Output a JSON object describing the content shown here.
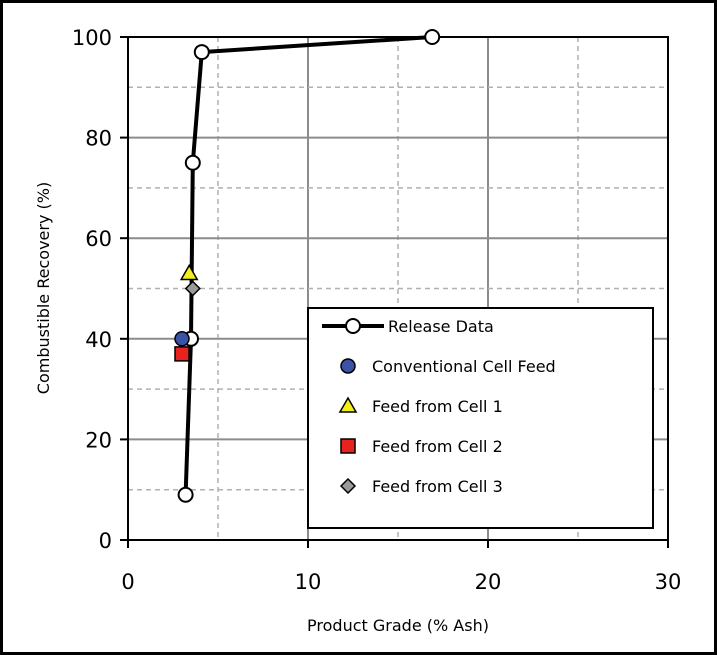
{
  "chart_data": {
    "type": "scatter",
    "title": "",
    "xlabel": "Product Grade (% Ash)",
    "ylabel": "Combustible Recovery (%)",
    "xlim": [
      0,
      30
    ],
    "ylim": [
      0,
      100
    ],
    "x_ticks": [
      0,
      10,
      20,
      30
    ],
    "y_ticks": [
      0,
      20,
      40,
      60,
      80,
      100
    ],
    "x_tick_labels": [
      "0",
      "10",
      "20",
      "30"
    ],
    "y_tick_labels": [
      "0",
      "20",
      "40",
      "60",
      "80",
      "100"
    ],
    "grid": true,
    "legend_position": "bottom-right",
    "series": [
      {
        "name": "Release Data",
        "marker": "open-circle",
        "line": true,
        "color": "#000000",
        "x": [
          3.2,
          3.5,
          3.6,
          4.1,
          16.9
        ],
        "y": [
          9,
          40,
          75,
          97,
          100
        ]
      },
      {
        "name": "Conventional Cell Feed",
        "marker": "circle",
        "line": false,
        "color": "#3a52a8",
        "x": [
          3.0
        ],
        "y": [
          40
        ]
      },
      {
        "name": "Feed from Cell 1",
        "marker": "triangle",
        "line": false,
        "color": "#f2ee1c",
        "x": [
          3.4
        ],
        "y": [
          53
        ]
      },
      {
        "name": "Feed from Cell 2",
        "marker": "square",
        "line": false,
        "color": "#e8221e",
        "x": [
          3.0
        ],
        "y": [
          37
        ]
      },
      {
        "name": "Feed from Cell 3",
        "marker": "diamond",
        "line": false,
        "color": "#9a9a9a",
        "x": [
          3.6
        ],
        "y": [
          50
        ]
      }
    ]
  }
}
